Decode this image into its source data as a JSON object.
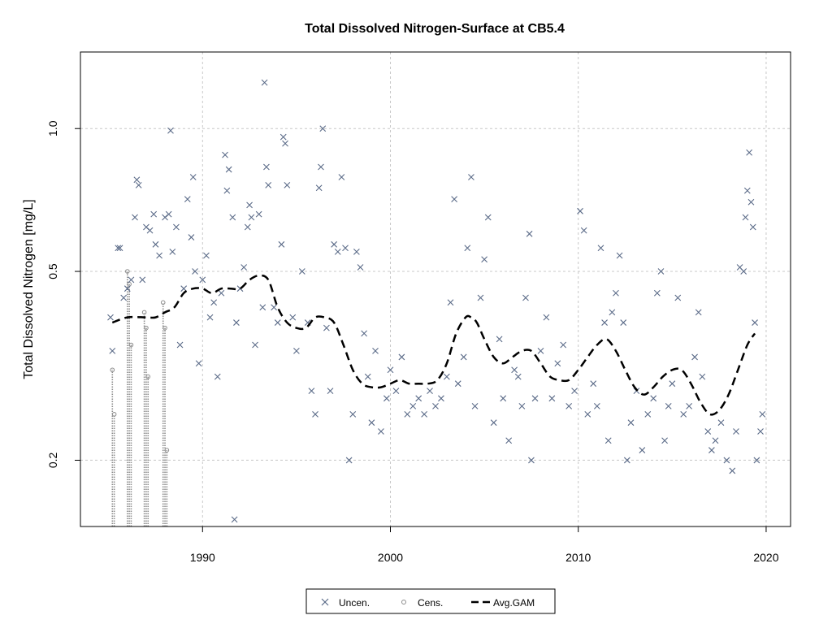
{
  "chart_data": {
    "type": "scatter",
    "title": "Total Dissolved Nitrogen-Surface at CB5.4",
    "ylabel": "Total Dissolved Nitrogen [mg/L]",
    "xlabel": "",
    "xlim": [
      1983.5,
      2021.3
    ],
    "ylim": [
      0.145,
      1.45
    ],
    "y_scale": "log",
    "grid": true,
    "legend_position": "bottom-center",
    "x_ticks": [
      1990,
      2000,
      2010,
      2020
    ],
    "x_tick_labels": [
      "1990",
      "2000",
      "2010",
      "2020"
    ],
    "y_ticks": [
      0.2,
      0.5,
      1.0
    ],
    "y_tick_labels": [
      "0.2",
      "0.5",
      "1.0"
    ],
    "legend": [
      {
        "label": "Uncen.",
        "symbol": "x"
      },
      {
        "label": "Cens.",
        "symbol": "circle"
      },
      {
        "label": "Avg.GAM",
        "symbol": "dashed-line"
      }
    ],
    "colors": {
      "uncen": "#5b6b88",
      "cens": "#8c8c8c",
      "gam": "#000000",
      "grid": "#c8c8c8"
    },
    "series": [
      {
        "name": "Uncen.",
        "marker": "x",
        "points": [
          [
            1985.1,
            0.4
          ],
          [
            1985.2,
            0.34
          ],
          [
            1985.5,
            0.56
          ],
          [
            1985.6,
            0.56
          ],
          [
            1985.8,
            0.44
          ],
          [
            1986.0,
            0.46
          ],
          [
            1986.2,
            0.48
          ],
          [
            1986.4,
            0.65
          ],
          [
            1986.5,
            0.78
          ],
          [
            1986.6,
            0.76
          ],
          [
            1986.8,
            0.48
          ],
          [
            1987.0,
            0.62
          ],
          [
            1987.2,
            0.61
          ],
          [
            1987.4,
            0.66
          ],
          [
            1987.5,
            0.57
          ],
          [
            1987.7,
            0.54
          ],
          [
            1988.0,
            0.65
          ],
          [
            1988.2,
            0.66
          ],
          [
            1988.3,
            0.99
          ],
          [
            1988.4,
            0.55
          ],
          [
            1988.6,
            0.62
          ],
          [
            1988.8,
            0.35
          ],
          [
            1989.0,
            0.46
          ],
          [
            1989.2,
            0.71
          ],
          [
            1989.4,
            0.59
          ],
          [
            1989.5,
            0.79
          ],
          [
            1989.6,
            0.5
          ],
          [
            1989.8,
            0.32
          ],
          [
            1990.0,
            0.48
          ],
          [
            1990.2,
            0.54
          ],
          [
            1990.4,
            0.4
          ],
          [
            1990.6,
            0.43
          ],
          [
            1990.8,
            0.3
          ],
          [
            1991.0,
            0.45
          ],
          [
            1991.2,
            0.88
          ],
          [
            1991.3,
            0.74
          ],
          [
            1991.4,
            0.82
          ],
          [
            1991.6,
            0.65
          ],
          [
            1991.7,
            0.15
          ],
          [
            1991.8,
            0.39
          ],
          [
            1992.0,
            0.46
          ],
          [
            1992.2,
            0.51
          ],
          [
            1992.4,
            0.62
          ],
          [
            1992.5,
            0.69
          ],
          [
            1992.6,
            0.65
          ],
          [
            1992.8,
            0.35
          ],
          [
            1993.0,
            0.66
          ],
          [
            1993.2,
            0.42
          ],
          [
            1993.3,
            1.25
          ],
          [
            1993.4,
            0.83
          ],
          [
            1993.5,
            0.76
          ],
          [
            1993.8,
            0.42
          ],
          [
            1994.0,
            0.39
          ],
          [
            1994.2,
            0.57
          ],
          [
            1994.3,
            0.96
          ],
          [
            1994.4,
            0.93
          ],
          [
            1994.5,
            0.76
          ],
          [
            1994.8,
            0.4
          ],
          [
            1995.0,
            0.34
          ],
          [
            1995.3,
            0.5
          ],
          [
            1995.6,
            0.39
          ],
          [
            1995.8,
            0.28
          ],
          [
            1996.0,
            0.25
          ],
          [
            1996.2,
            0.75
          ],
          [
            1996.3,
            0.83
          ],
          [
            1996.4,
            1.0
          ],
          [
            1996.6,
            0.38
          ],
          [
            1996.8,
            0.28
          ],
          [
            1997.0,
            0.57
          ],
          [
            1997.2,
            0.55
          ],
          [
            1997.4,
            0.79
          ],
          [
            1997.6,
            0.56
          ],
          [
            1997.8,
            0.2
          ],
          [
            1998.0,
            0.25
          ],
          [
            1998.2,
            0.55
          ],
          [
            1998.4,
            0.51
          ],
          [
            1998.6,
            0.37
          ],
          [
            1998.8,
            0.3
          ],
          [
            1999.0,
            0.24
          ],
          [
            1999.2,
            0.34
          ],
          [
            1999.5,
            0.23
          ],
          [
            1999.8,
            0.27
          ],
          [
            2000.0,
            0.31
          ],
          [
            2000.3,
            0.28
          ],
          [
            2000.6,
            0.33
          ],
          [
            2000.9,
            0.25
          ],
          [
            2001.2,
            0.26
          ],
          [
            2001.5,
            0.27
          ],
          [
            2001.8,
            0.25
          ],
          [
            2002.1,
            0.28
          ],
          [
            2002.4,
            0.26
          ],
          [
            2002.7,
            0.27
          ],
          [
            2003.0,
            0.3
          ],
          [
            2003.2,
            0.43
          ],
          [
            2003.4,
            0.71
          ],
          [
            2003.6,
            0.29
          ],
          [
            2003.9,
            0.33
          ],
          [
            2004.1,
            0.56
          ],
          [
            2004.3,
            0.79
          ],
          [
            2004.5,
            0.26
          ],
          [
            2004.8,
            0.44
          ],
          [
            2005.0,
            0.53
          ],
          [
            2005.2,
            0.65
          ],
          [
            2005.5,
            0.24
          ],
          [
            2005.8,
            0.36
          ],
          [
            2006.0,
            0.27
          ],
          [
            2006.3,
            0.22
          ],
          [
            2006.6,
            0.31
          ],
          [
            2006.8,
            0.3
          ],
          [
            2007.0,
            0.26
          ],
          [
            2007.2,
            0.44
          ],
          [
            2007.4,
            0.6
          ],
          [
            2007.5,
            0.2
          ],
          [
            2007.7,
            0.27
          ],
          [
            2008.0,
            0.34
          ],
          [
            2008.3,
            0.4
          ],
          [
            2008.6,
            0.27
          ],
          [
            2008.9,
            0.32
          ],
          [
            2009.2,
            0.35
          ],
          [
            2009.5,
            0.26
          ],
          [
            2009.8,
            0.28
          ],
          [
            2010.1,
            0.67
          ],
          [
            2010.3,
            0.61
          ],
          [
            2010.5,
            0.25
          ],
          [
            2010.8,
            0.29
          ],
          [
            2011.0,
            0.26
          ],
          [
            2011.2,
            0.56
          ],
          [
            2011.4,
            0.39
          ],
          [
            2011.6,
            0.22
          ],
          [
            2011.8,
            0.41
          ],
          [
            2012.0,
            0.45
          ],
          [
            2012.2,
            0.54
          ],
          [
            2012.4,
            0.39
          ],
          [
            2012.6,
            0.2
          ],
          [
            2012.8,
            0.24
          ],
          [
            2013.1,
            0.28
          ],
          [
            2013.4,
            0.21
          ],
          [
            2013.7,
            0.25
          ],
          [
            2014.0,
            0.27
          ],
          [
            2014.2,
            0.45
          ],
          [
            2014.4,
            0.5
          ],
          [
            2014.6,
            0.22
          ],
          [
            2014.8,
            0.26
          ],
          [
            2015.0,
            0.29
          ],
          [
            2015.3,
            0.44
          ],
          [
            2015.6,
            0.25
          ],
          [
            2015.9,
            0.26
          ],
          [
            2016.2,
            0.33
          ],
          [
            2016.4,
            0.41
          ],
          [
            2016.6,
            0.3
          ],
          [
            2016.9,
            0.23
          ],
          [
            2017.1,
            0.21
          ],
          [
            2017.3,
            0.22
          ],
          [
            2017.6,
            0.24
          ],
          [
            2017.9,
            0.2
          ],
          [
            2018.2,
            0.19
          ],
          [
            2018.4,
            0.23
          ],
          [
            2018.6,
            0.51
          ],
          [
            2018.8,
            0.5
          ],
          [
            2018.9,
            0.65
          ],
          [
            2019.0,
            0.74
          ],
          [
            2019.1,
            0.89
          ],
          [
            2019.2,
            0.7
          ],
          [
            2019.3,
            0.62
          ],
          [
            2019.4,
            0.39
          ],
          [
            2019.5,
            0.2
          ],
          [
            2019.7,
            0.23
          ],
          [
            2019.8,
            0.25
          ]
        ]
      },
      {
        "name": "Cens.",
        "marker": "circle",
        "points": [
          [
            1985.2,
            0.31
          ],
          [
            1985.3,
            0.25
          ],
          [
            1986.0,
            0.5
          ],
          [
            1986.1,
            0.47
          ],
          [
            1986.2,
            0.35
          ],
          [
            1986.9,
            0.41
          ],
          [
            1987.0,
            0.38
          ],
          [
            1987.1,
            0.3
          ],
          [
            1987.9,
            0.43
          ],
          [
            1988.0,
            0.38
          ],
          [
            1988.1,
            0.21
          ]
        ]
      },
      {
        "name": "Avg.GAM",
        "marker": "dashed-line",
        "x": [
          1985.2,
          1986.0,
          1987.0,
          1987.5,
          1988.0,
          1988.5,
          1989.0,
          1989.5,
          1990.0,
          1990.5,
          1991.0,
          1991.5,
          1992.0,
          1992.5,
          1993.0,
          1993.5,
          1994.0,
          1994.5,
          1995.0,
          1995.5,
          1996.0,
          1996.5,
          1997.0,
          1997.5,
          1998.0,
          1998.5,
          1999.0,
          1999.5,
          2000.0,
          2000.5,
          2001.0,
          2001.5,
          2002.0,
          2002.5,
          2003.0,
          2003.5,
          2004.0,
          2004.3,
          2004.6,
          2005.0,
          2005.5,
          2006.0,
          2006.5,
          2007.0,
          2007.5,
          2008.0,
          2008.5,
          2009.0,
          2009.5,
          2010.0,
          2010.5,
          2011.0,
          2011.5,
          2012.0,
          2012.5,
          2013.0,
          2013.5,
          2014.0,
          2014.5,
          2015.0,
          2015.5,
          2016.0,
          2016.5,
          2017.0,
          2017.5,
          2018.0,
          2018.5,
          2019.0,
          2019.4
        ],
        "y": [
          0.39,
          0.4,
          0.4,
          0.4,
          0.41,
          0.42,
          0.45,
          0.46,
          0.46,
          0.45,
          0.46,
          0.46,
          0.46,
          0.48,
          0.49,
          0.48,
          0.42,
          0.39,
          0.38,
          0.38,
          0.4,
          0.4,
          0.39,
          0.35,
          0.31,
          0.29,
          0.285,
          0.285,
          0.29,
          0.295,
          0.29,
          0.29,
          0.29,
          0.295,
          0.32,
          0.37,
          0.4,
          0.4,
          0.39,
          0.36,
          0.33,
          0.32,
          0.33,
          0.34,
          0.34,
          0.32,
          0.3,
          0.295,
          0.295,
          0.31,
          0.33,
          0.35,
          0.36,
          0.34,
          0.31,
          0.285,
          0.275,
          0.285,
          0.3,
          0.31,
          0.31,
          0.29,
          0.265,
          0.25,
          0.255,
          0.275,
          0.31,
          0.35,
          0.37
        ]
      }
    ]
  }
}
